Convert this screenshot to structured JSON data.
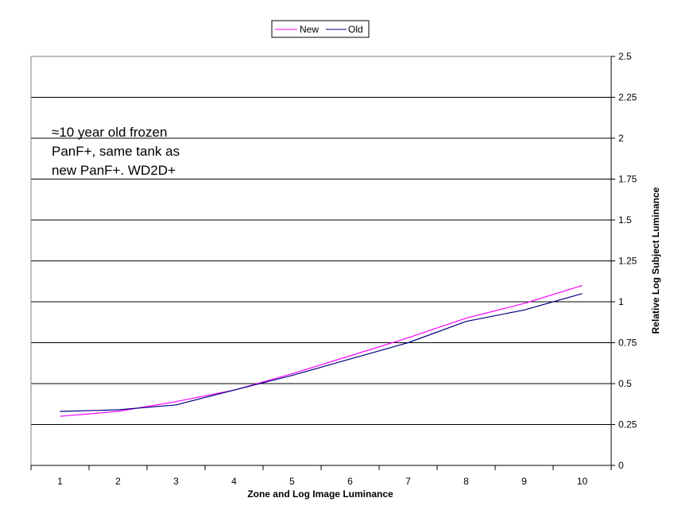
{
  "chart_data": {
    "type": "line",
    "title": "",
    "xlabel": "Zone and Log Image Luminance",
    "ylabel": "Relative Log Subject Luminance",
    "x": [
      1,
      2,
      3,
      4,
      5,
      6,
      7,
      8,
      9,
      10
    ],
    "xlim": [
      0.5,
      10.5
    ],
    "ylim": [
      0,
      2.5
    ],
    "yticks": [
      "0",
      "0.25",
      "0.5",
      "0.75",
      "1",
      "1.25",
      "1.5",
      "1.75",
      "2",
      "2.25",
      "2.5"
    ],
    "xticks": [
      "1",
      "2",
      "3",
      "4",
      "5",
      "6",
      "7",
      "8",
      "9",
      "10"
    ],
    "grid": "horizontal",
    "y_axis_side": "right",
    "legend_position": "top-center",
    "series": [
      {
        "name": "New",
        "color": "#ff00ff",
        "values": [
          0.3,
          0.33,
          0.39,
          0.46,
          0.56,
          0.67,
          0.78,
          0.9,
          0.99,
          1.1
        ]
      },
      {
        "name": "Old",
        "color": "#000080",
        "values": [
          0.33,
          0.34,
          0.37,
          0.46,
          0.55,
          0.65,
          0.75,
          0.88,
          0.95,
          1.05
        ]
      }
    ],
    "annotation": {
      "lines": [
        "≈10 year old frozen",
        "PanF+, same tank as",
        "new PanF+.  WD2D+"
      ]
    }
  }
}
